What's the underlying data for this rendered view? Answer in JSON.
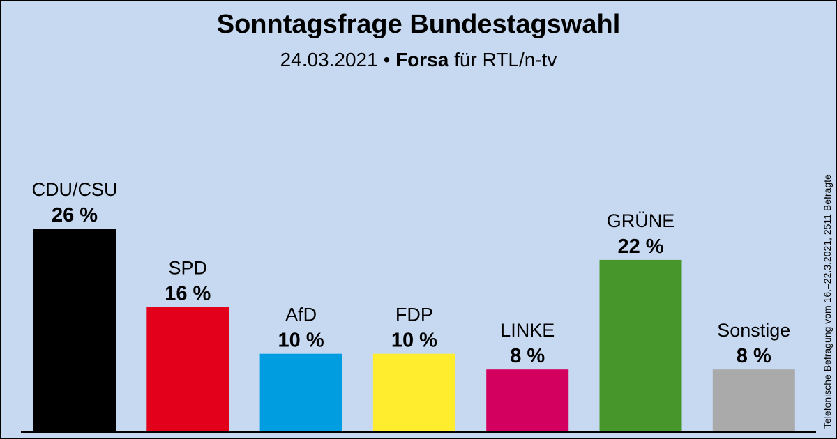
{
  "header": {
    "title": "Sonntagsfrage Bundestagswahl",
    "date": "24.03.2021",
    "bullet": "•",
    "institute": "Forsa",
    "client": "für RTL/n-tv"
  },
  "side_note": "Telefonische Befragung vom 16.–22.3.2021, 2511 Befragte",
  "chart_data": {
    "type": "bar",
    "title": "Sonntagsfrage Bundestagswahl",
    "categories": [
      "CDU/CSU",
      "SPD",
      "AfD",
      "FDP",
      "LINKE",
      "GRÜNE",
      "Sonstige"
    ],
    "values": [
      26,
      16,
      10,
      10,
      8,
      22,
      8
    ],
    "value_labels": [
      "26 %",
      "16 %",
      "10 %",
      "10 %",
      "8 %",
      "22 %",
      "8 %"
    ],
    "colors": [
      "#000000",
      "#e2001a",
      "#009ee0",
      "#ffed2e",
      "#d4005f",
      "#46962b",
      "#aaaaaa"
    ],
    "unit": "%",
    "xlabel": "",
    "ylabel": "",
    "ylim": [
      0,
      26
    ],
    "grid": false,
    "legend": "none"
  }
}
